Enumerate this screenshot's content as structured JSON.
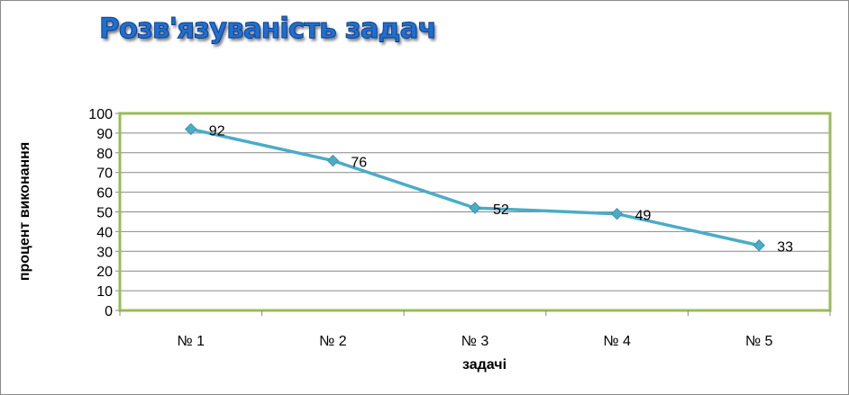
{
  "chart_data": {
    "type": "line",
    "title": "Розв'язуваність задач",
    "xlabel": "задачі",
    "ylabel": "процент виконання",
    "categories": [
      "№ 1",
      "№ 2",
      "№ 3",
      "№ 4",
      "№ 5"
    ],
    "series": [
      {
        "values": [
          92,
          76,
          52,
          49,
          33
        ]
      }
    ],
    "data_labels": [
      "92",
      "76",
      "52",
      "49",
      "33"
    ],
    "ylim": [
      0,
      100
    ],
    "yticks": [
      0,
      10,
      20,
      30,
      40,
      50,
      60,
      70,
      80,
      90,
      100
    ],
    "grid": true,
    "legend": "none",
    "colors": {
      "series": "#4bacc6",
      "plot_border": "#9bbb59",
      "gridline": "#878787",
      "title": "#1f6fd1"
    },
    "marker": "diamond-icon"
  }
}
